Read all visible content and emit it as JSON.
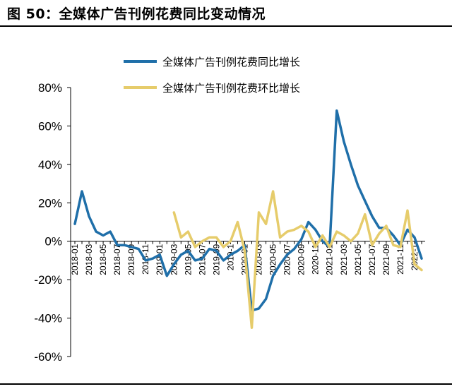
{
  "header": {
    "title": "图 50：全媒体广告刊例花费同比变动情况"
  },
  "colors": {
    "yoy": "#1F6FA9",
    "mom": "#E6CC6B",
    "axis": "#000000"
  },
  "chart_data": {
    "type": "line",
    "title": "",
    "xlabel": "",
    "ylabel": "",
    "y_unit": "%",
    "ylim": [
      -60,
      80
    ],
    "yticks": [
      -60,
      -40,
      -20,
      0,
      20,
      40,
      60,
      80
    ],
    "ytick_labels": [
      "-60%",
      "-40%",
      "-20%",
      "0%",
      "20%",
      "40%",
      "60%",
      "80%"
    ],
    "grid": false,
    "legend_position": "top-center",
    "x": [
      "2018-01",
      "2018-02",
      "2018-03",
      "2018-04",
      "2018-05",
      "2018-06",
      "2018-07",
      "2018-08",
      "2018-09",
      "2018-10",
      "2018-11",
      "2018-12",
      "2019-01",
      "2019-02",
      "2019-03",
      "2019-04",
      "2019-05",
      "2019-06",
      "2019-07",
      "2019-08",
      "2019-09",
      "2019-10",
      "2019-11",
      "2019-12",
      "2020-01",
      "2020-02",
      "2020-03",
      "2020-04",
      "2020-05",
      "2020-06",
      "2020-07",
      "2020-08",
      "2020-09",
      "2020-10",
      "2020-11",
      "2020-12",
      "2021-01",
      "2021-02",
      "2021-03",
      "2021-04",
      "2021-05",
      "2021-06",
      "2021-07",
      "2021-08",
      "2021-09",
      "2021-10",
      "2021-11",
      "2021-12",
      "2022-01",
      "2022-02"
    ],
    "x_tick_labels": [
      "2018-01",
      "2018-03",
      "2018-05",
      "2018-07",
      "2018-09",
      "2018-11",
      "2019-01",
      "2019-03",
      "2019-05",
      "2019-07",
      "2019-09",
      "2019-11",
      "2020-01",
      "2020-03",
      "2020-05",
      "2020-07",
      "2020-09",
      "2020-11",
      "2021-01",
      "2021-03",
      "2021-05",
      "2021-07",
      "2021-09",
      "2021-11",
      "2022-01"
    ],
    "x_tick_display": [
      "2018-01",
      "2018-03",
      "2018-05",
      "2018-07",
      "2018-09",
      "2018-11",
      "2019-01",
      "2019-03",
      "2019-05",
      "2019-07",
      "2019-09",
      "2019-1",
      "2020-01",
      "2020-03",
      "2020-05",
      "2020-07",
      "2020-09",
      "2020-11",
      "2021-01",
      "2021-03",
      "2021-05",
      "2021-07",
      "2021-09",
      "2021-11",
      "2022-1"
    ],
    "series": [
      {
        "name": "全媒体广告刊例花费同比增长",
        "color": "#1F6FA9",
        "values": [
          9,
          26,
          13,
          5,
          3,
          5,
          -2,
          -2,
          -3,
          -4,
          -10,
          -9,
          -7,
          -18,
          -12,
          -7,
          -5,
          -10,
          -9,
          -4,
          -5,
          -10,
          -7,
          -5,
          -2,
          -36,
          -35,
          -30,
          -18,
          -12,
          -7,
          -4,
          1,
          10,
          6,
          0,
          -3,
          68,
          52,
          40,
          29,
          21,
          13,
          7,
          7,
          3,
          -2,
          6,
          2,
          -9
        ]
      },
      {
        "name": "全媒体广告刊例花费环比增长",
        "color": "#E6CC6B",
        "values": [
          null,
          null,
          null,
          null,
          null,
          null,
          null,
          null,
          null,
          null,
          null,
          null,
          null,
          null,
          15,
          2,
          5,
          -3,
          0,
          2,
          2,
          -3,
          0,
          10,
          -5,
          -45,
          15,
          9,
          26,
          2,
          5,
          6,
          8,
          5,
          -3,
          3,
          -3,
          5,
          3,
          0,
          4,
          14,
          -2,
          4,
          8,
          -2,
          -3,
          16,
          -12,
          -15
        ]
      }
    ]
  }
}
